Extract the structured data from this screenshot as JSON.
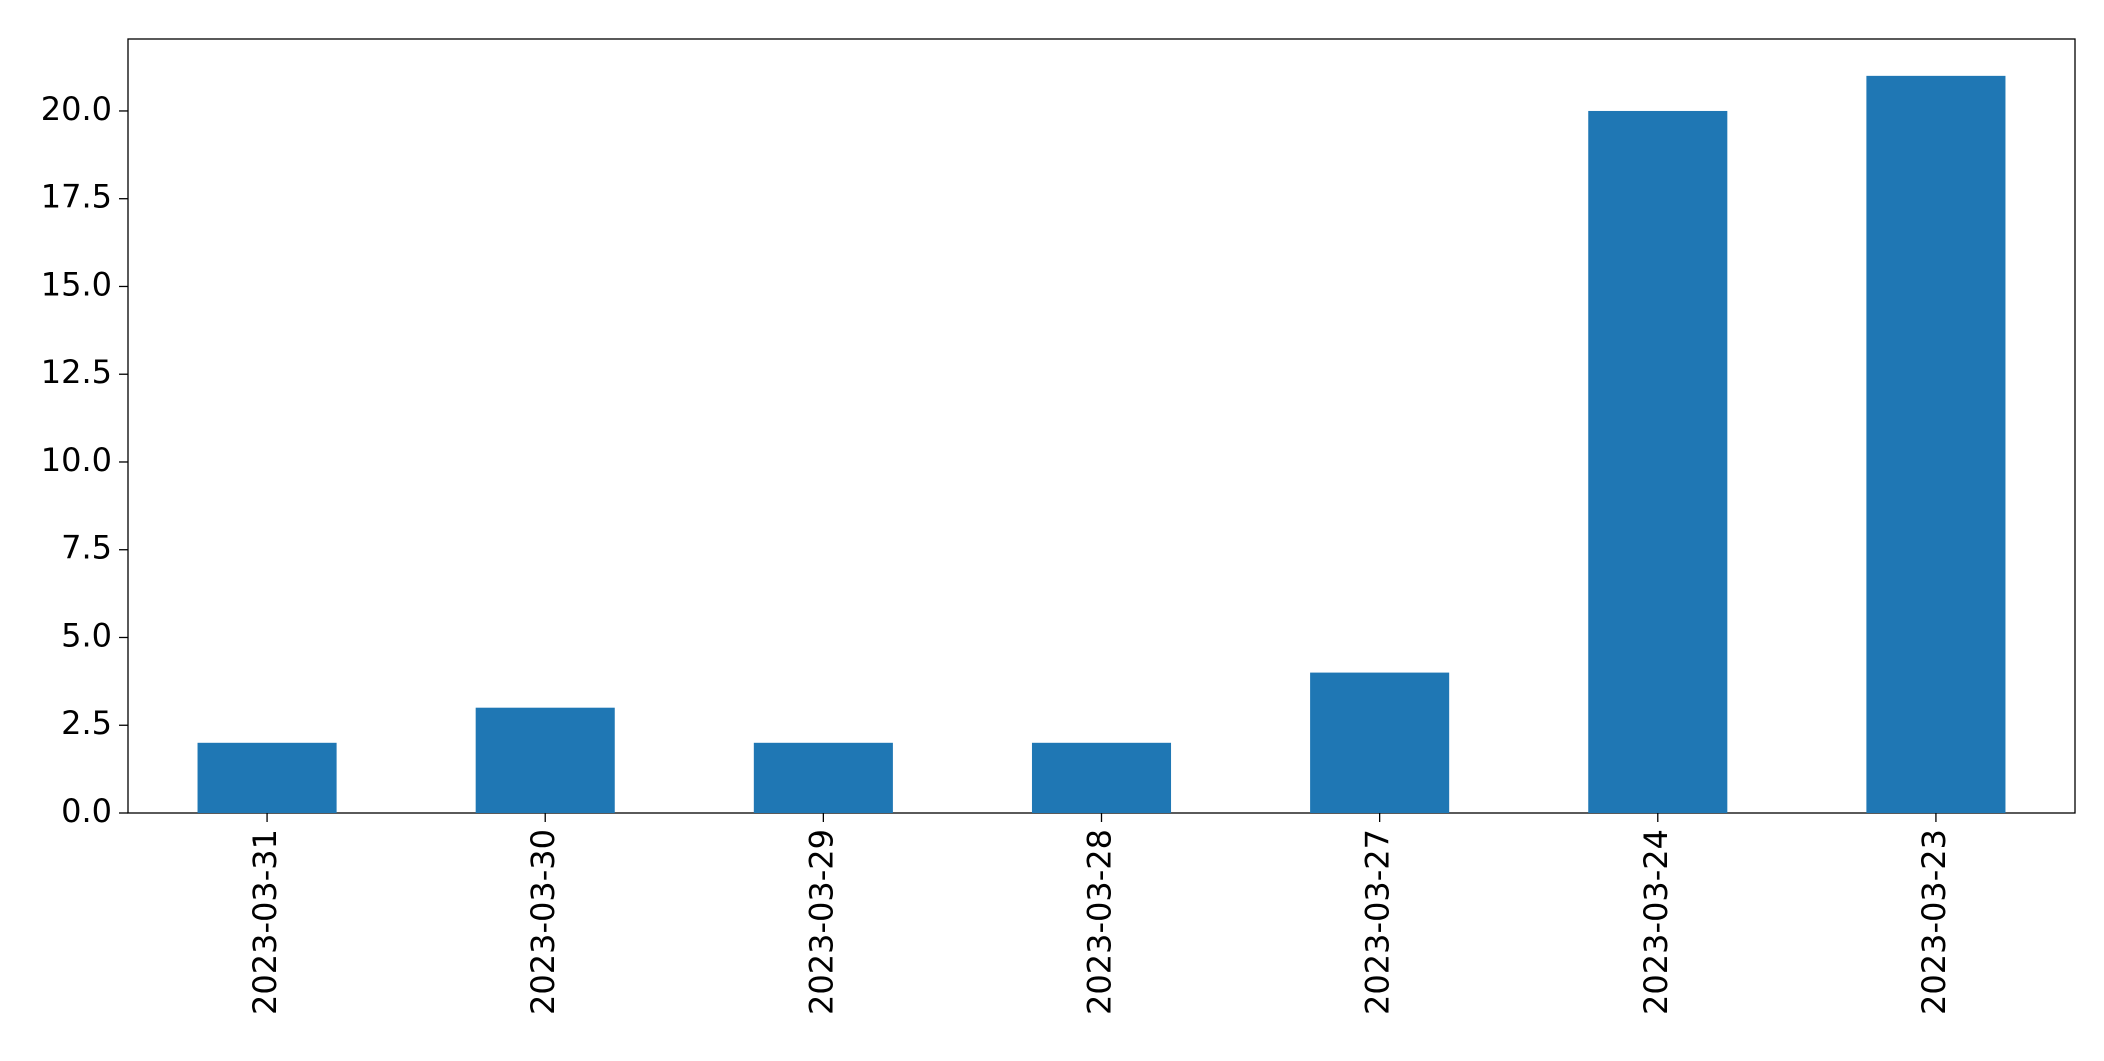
{
  "chart_data": {
    "type": "bar",
    "categories": [
      "2023-03-31",
      "2023-03-30",
      "2023-03-29",
      "2023-03-28",
      "2023-03-27",
      "2023-03-24",
      "2023-03-23"
    ],
    "values": [
      2,
      3,
      2,
      2,
      4,
      20,
      21
    ],
    "color": "#1f77b4",
    "ylim": [
      0,
      22.05
    ],
    "yticks": [
      {
        "value": 0,
        "label": "0.0"
      },
      2.5,
      {
        "value": 5,
        "label": "5.0"
      },
      7.5,
      {
        "value": 10,
        "label": "10.0"
      },
      12.5,
      {
        "value": 15,
        "label": "15.0"
      },
      17.5,
      {
        "value": 20,
        "label": "20.0"
      }
    ],
    "grid": false
  }
}
